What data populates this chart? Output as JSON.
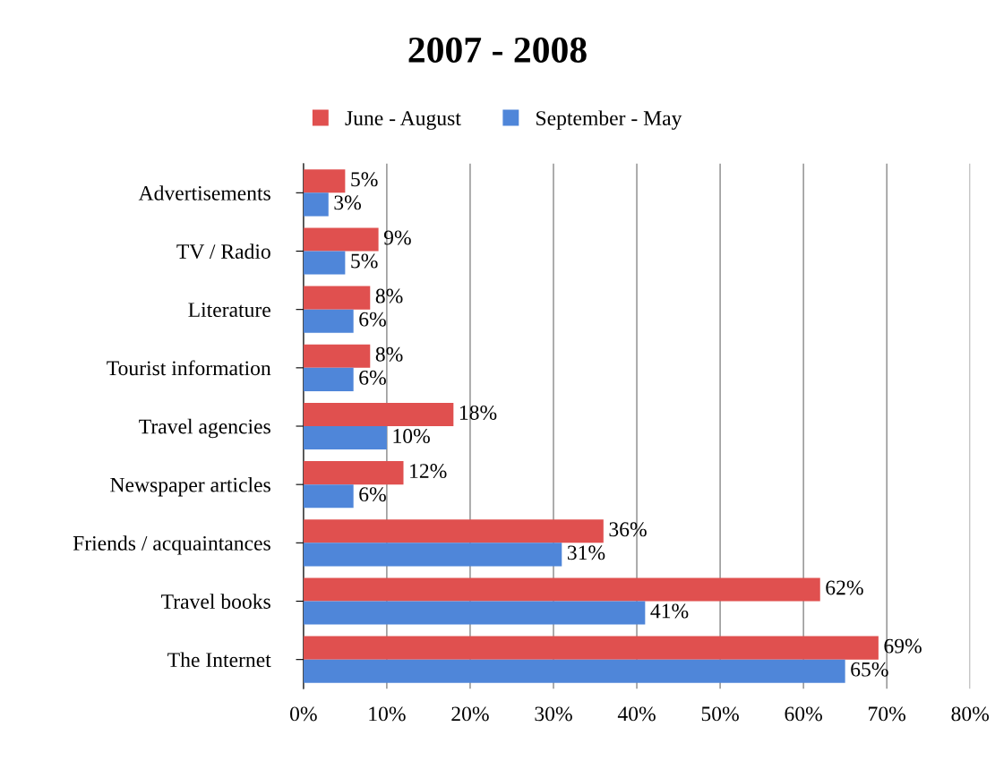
{
  "chart_data": {
    "type": "bar",
    "orientation": "horizontal",
    "title": "2007 - 2008",
    "categories": [
      "Advertisements",
      "TV / Radio",
      "Literature",
      "Tourist information",
      "Travel agencies",
      "Newspaper articles",
      "Friends / acquaintances",
      "Travel books",
      "The Internet"
    ],
    "series": [
      {
        "name": "June - August",
        "color": "#e0504f",
        "values": [
          5,
          9,
          8,
          8,
          18,
          12,
          36,
          62,
          69
        ],
        "value_labels": [
          "5%",
          "9%",
          "8%",
          "8%",
          "18%",
          "12%",
          "36%",
          "62%",
          "69%"
        ]
      },
      {
        "name": "September - May",
        "color": "#4f86d9",
        "values": [
          3,
          5,
          6,
          6,
          10,
          6,
          31,
          41,
          65
        ],
        "value_labels": [
          "3%",
          "5%",
          "6%",
          "6%",
          "10%",
          "6%",
          "31%",
          "41%",
          "65%"
        ]
      }
    ],
    "xlim": [
      0,
      80
    ],
    "xticks": [
      {
        "value": 0,
        "label": "0%"
      },
      {
        "value": 10,
        "label": "10%"
      },
      {
        "value": 20,
        "label": "20%"
      },
      {
        "value": 30,
        "label": "30%"
      },
      {
        "value": 40,
        "label": "40%"
      },
      {
        "value": 50,
        "label": "50%"
      },
      {
        "value": 60,
        "label": "60%"
      },
      {
        "value": 70,
        "label": "70%"
      },
      {
        "value": 80,
        "label": "80%"
      }
    ],
    "grid": "x",
    "legend": "top"
  }
}
